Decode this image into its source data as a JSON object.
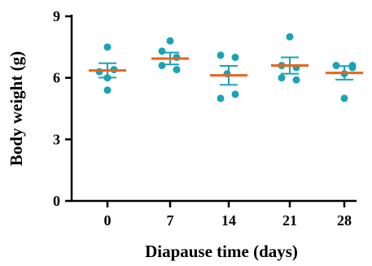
{
  "chart_data": {
    "type": "scatter",
    "title": "",
    "xlabel": "Diapause time (days)",
    "ylabel": "Body weight (g)",
    "ylim": [
      0,
      9
    ],
    "yticks": [
      "0",
      "3",
      "6",
      "9"
    ],
    "categories": [
      "0",
      "7",
      "14",
      "21",
      "28"
    ],
    "points": [
      [
        7.5,
        6.3,
        6.4,
        6.0,
        5.4
      ],
      [
        7.8,
        7.3,
        7.0,
        6.6,
        6.4
      ],
      [
        7.1,
        7.0,
        6.2,
        5.2,
        5.0
      ],
      [
        8.0,
        6.6,
        6.5,
        6.0,
        5.9
      ],
      [
        6.6,
        6.6,
        6.5,
        6.2,
        5.0
      ]
    ],
    "mean": [
      6.36,
      6.94,
      6.12,
      6.6,
      6.24
    ],
    "sem": [
      0.35,
      0.29,
      0.46,
      0.4,
      0.33
    ],
    "colors": {
      "points": "#1aa3b8",
      "error_bars": "#1aa3b8",
      "mean_line": "#e8651a",
      "axis": "#000000"
    },
    "grid": false,
    "legend": "none"
  }
}
